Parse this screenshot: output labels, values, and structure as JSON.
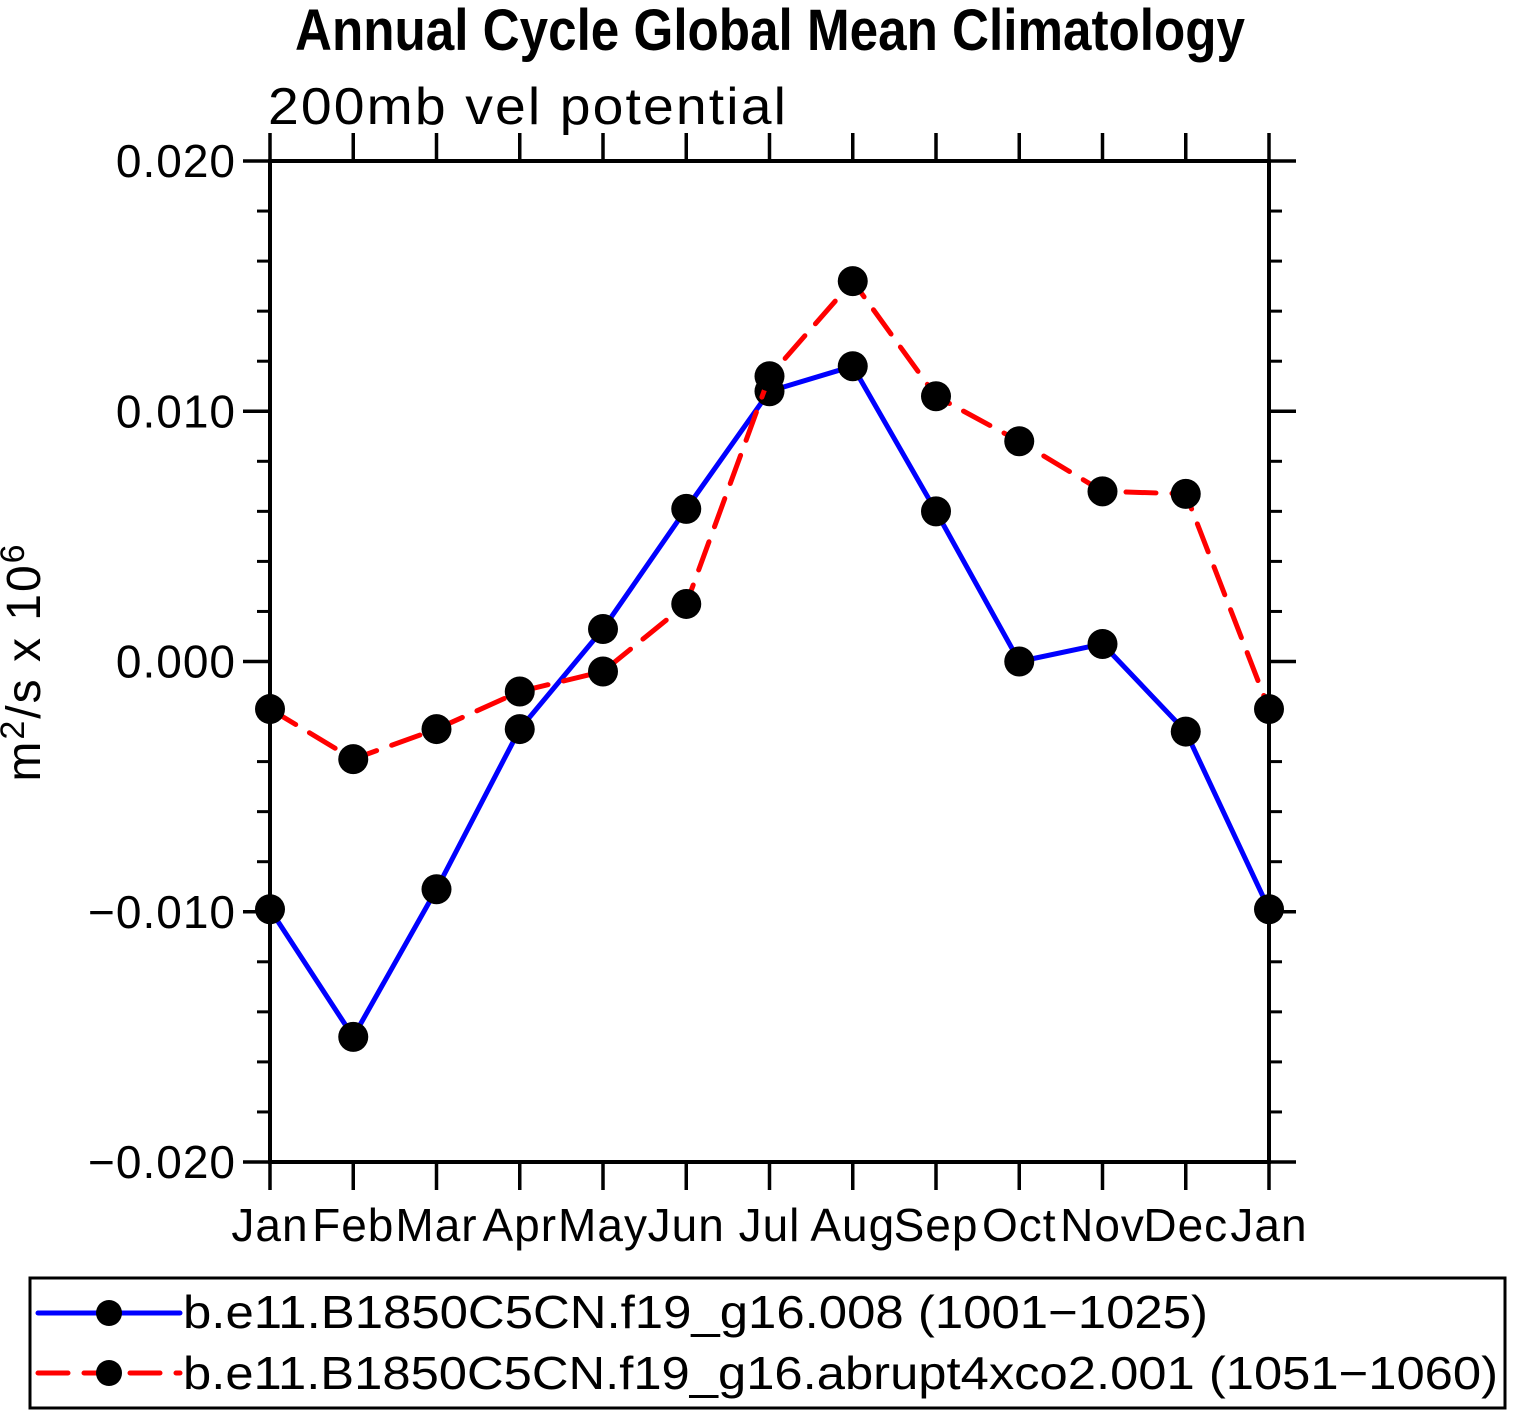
{
  "title": "Annual Cycle Global Mean Climatology",
  "chart_data": {
    "type": "line",
    "title": "Annual Cycle Global Mean Climatology",
    "subtitle": "200mb vel potential",
    "xlabel": "",
    "ylabel": "m²/s x 10⁶",
    "ylabel_parts": {
      "base1": "m",
      "sup1": "2",
      "base2": "/s x 10",
      "sup2": "6"
    },
    "categories": [
      "Jan",
      "Feb",
      "Mar",
      "Apr",
      "May",
      "Jun",
      "Jul",
      "Aug",
      "Sep",
      "Oct",
      "Nov",
      "Dec",
      "Jan"
    ],
    "ylim": [
      -0.02,
      0.02
    ],
    "y_tick_values": [
      0.02,
      0.01,
      0.0,
      -0.01,
      -0.02
    ],
    "y_tick_labels": [
      "0.020",
      "0.010",
      "0.000",
      "−0.010",
      "−0.020"
    ],
    "y_minor_step": 0.002,
    "grid": "off",
    "legend_position": "bottom",
    "series": [
      {
        "name": "b.e11.B1850C5CN.f19_g16.008 (1001−1025)",
        "color": "#0000ff",
        "line_style": "solid",
        "marker": "filled-circle",
        "marker_color": "#000000",
        "values": [
          -0.0099,
          -0.015,
          -0.0091,
          -0.0027,
          0.0013,
          0.0061,
          0.0108,
          0.0118,
          0.006,
          0.0,
          0.0007,
          -0.0028,
          -0.0099
        ]
      },
      {
        "name": "b.e11.B1850C5CN.f19_g16.abrupt4xco2.001 (1051−1060)",
        "color": "#ff0000",
        "line_style": "dashed",
        "marker": "filled-circle",
        "marker_color": "#000000",
        "values": [
          -0.0019,
          -0.0039,
          -0.0027,
          -0.0012,
          -0.0004,
          0.0023,
          0.0114,
          0.0152,
          0.0106,
          0.0088,
          0.0068,
          0.0067,
          -0.0019
        ]
      }
    ]
  },
  "colors": {
    "background": "#ffffff",
    "axis": "#000000",
    "series_blue": "#0000ff",
    "series_red": "#ff0000",
    "marker": "#000000"
  }
}
